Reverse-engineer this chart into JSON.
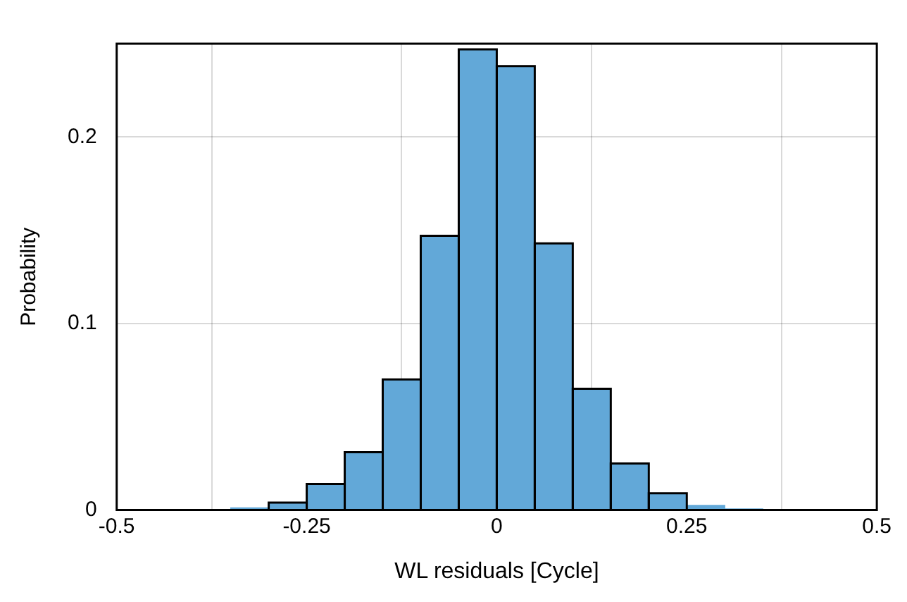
{
  "chart_data": {
    "type": "histogram",
    "xlabel": "WL residuals [Cycle]",
    "ylabel": "Probability",
    "bins": [
      -0.5,
      -0.45,
      -0.4,
      -0.35,
      -0.3,
      -0.25,
      -0.2,
      -0.15,
      -0.1,
      -0.05,
      0,
      0.05,
      0.1,
      0.15,
      0.2,
      0.25,
      0.3,
      0.35,
      0.4,
      0.45,
      0.5
    ],
    "values": [
      0,
      0,
      0.0003,
      0.0012,
      0.004,
      0.014,
      0.031,
      0.07,
      0.147,
      0.247,
      0.238,
      0.143,
      0.065,
      0.025,
      0.009,
      0.0025,
      0.0006,
      0.0002,
      0,
      0
    ],
    "color": "#62a8d8",
    "xlim": [
      -0.5,
      0.5
    ],
    "xticks": [
      -0.5,
      -0.25,
      0,
      0.25,
      0.5
    ],
    "ylim": [
      0,
      0.25
    ],
    "yticks": [
      0,
      0.1,
      0.2
    ],
    "grid": true
  }
}
